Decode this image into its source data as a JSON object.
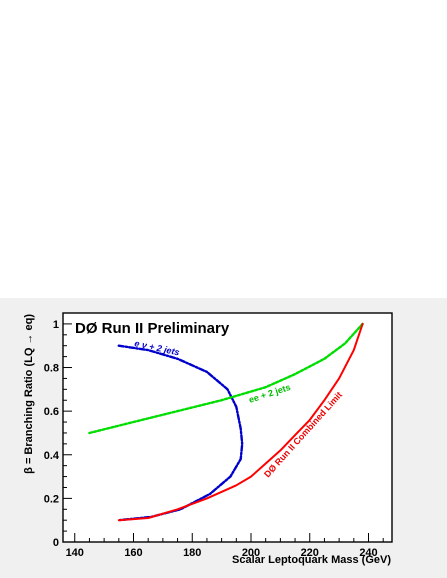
{
  "chart_data": {
    "type": "line",
    "title": "DØ Run II Preliminary",
    "xlabel": "Scalar Leptoquark Mass  (GeV)",
    "ylabel": "β = Branching Ratio (LQ → eq)",
    "xlim": [
      136,
      248
    ],
    "ylim": [
      0,
      1.05
    ],
    "x_ticks": [
      140,
      160,
      180,
      200,
      220,
      240
    ],
    "y_ticks": [
      0,
      0.2,
      0.4,
      0.6,
      0.8,
      1
    ],
    "grid": false,
    "series": [
      {
        "name": "eν + 2 jets",
        "color": "#0000cc",
        "style": "dashdot",
        "points": [
          [
            155,
            0.9
          ],
          [
            165,
            0.88
          ],
          [
            175,
            0.84
          ],
          [
            185,
            0.78
          ],
          [
            192,
            0.7
          ],
          [
            195,
            0.62
          ],
          [
            196.5,
            0.52
          ],
          [
            197,
            0.45
          ],
          [
            196.5,
            0.38
          ],
          [
            193,
            0.3
          ],
          [
            186,
            0.22
          ],
          [
            176,
            0.15
          ],
          [
            166,
            0.115
          ],
          [
            155,
            0.1
          ]
        ]
      },
      {
        "name": "ee + 2 jets",
        "color": "#00dd00",
        "style": "dotted",
        "points": [
          [
            145,
            0.5
          ],
          [
            160,
            0.55
          ],
          [
            175,
            0.6
          ],
          [
            190,
            0.65
          ],
          [
            205,
            0.71
          ],
          [
            215,
            0.77
          ],
          [
            225,
            0.84
          ],
          [
            232,
            0.91
          ],
          [
            238,
            1.0
          ]
        ]
      },
      {
        "name": "DØ Run II Combined Limit",
        "color": "#ff0000",
        "style": "solid",
        "points": [
          [
            155,
            0.1
          ],
          [
            165,
            0.11
          ],
          [
            175,
            0.15
          ],
          [
            185,
            0.2
          ],
          [
            195,
            0.26
          ],
          [
            200,
            0.3
          ],
          [
            205,
            0.36
          ],
          [
            210,
            0.42
          ],
          [
            215,
            0.49
          ],
          [
            220,
            0.56
          ],
          [
            225,
            0.65
          ],
          [
            230,
            0.75
          ],
          [
            235,
            0.88
          ],
          [
            238,
            1.0
          ]
        ]
      }
    ],
    "annotations": {
      "enu": "e ν + 2 jets",
      "ee": "ee + 2 jets",
      "combined": "DØ Run II Combined Limit"
    }
  }
}
